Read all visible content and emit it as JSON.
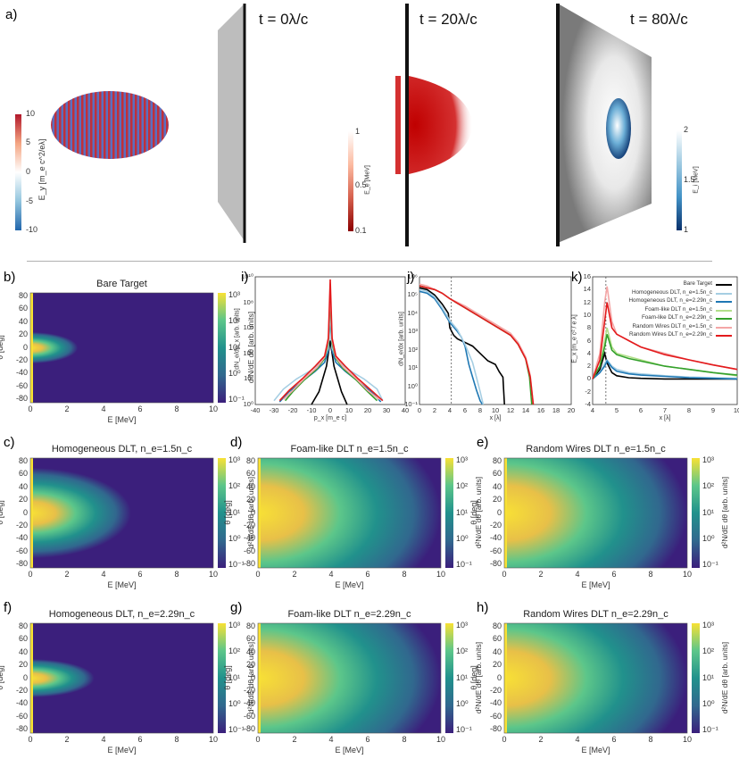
{
  "figure": {
    "panel_letters": {
      "a": "a)",
      "b": "b)",
      "c": "c)",
      "d": "d)",
      "e": "e)",
      "f": "f)",
      "g": "g)",
      "h": "h)",
      "i": "i)",
      "j": "j)",
      "k": "k)"
    }
  },
  "panel_a": {
    "times": [
      "t = 0λ/c",
      "t = 20λ/c",
      "t = 80λ/c"
    ],
    "cb1": {
      "label": "E_y [m_e c^2/eλ]",
      "ticks": [
        "10",
        "5",
        "0",
        "-5",
        "-10"
      ],
      "colors": [
        "#b2182b",
        "#ffffff",
        "#2166ac"
      ]
    },
    "cb2": {
      "label": "E_e [MeV]",
      "ticks": [
        "1",
        "0.5",
        "0.1"
      ],
      "colors": [
        "#ffffff",
        "#d6604d",
        "#8b0000"
      ]
    },
    "cb3": {
      "label": "E_i [MeV]",
      "ticks": [
        "2",
        "1.5",
        "1"
      ],
      "colors": [
        "#ffffff",
        "#6baed6",
        "#08306b"
      ]
    }
  },
  "heatmap_common": {
    "xlabel": "E [MeV]",
    "ylabel": "θ [deg]",
    "cblabel": "d²N/dE dθ [arb. units]",
    "xticks": [
      "0",
      "2",
      "4",
      "6",
      "8",
      "10"
    ],
    "yticks": [
      "80",
      "60",
      "40",
      "20",
      "0",
      "-20",
      "-40",
      "-60",
      "-80"
    ],
    "cbticks": [
      "10³",
      "10²",
      "10¹",
      "10⁰",
      "10⁻¹"
    ]
  },
  "chart_data": [
    {
      "type": "heatmap",
      "panel": "b",
      "title": "Bare Target",
      "xlim": [
        0,
        10
      ],
      "ylim": [
        -90,
        90
      ],
      "colorscale": "log",
      "clim": [
        0.1,
        1000
      ],
      "extent_mev": 2.6,
      "spread": 0.55
    },
    {
      "type": "heatmap",
      "panel": "c",
      "title": "Homogeneous DLT, n_e=1.5n_c",
      "xlim": [
        0,
        10
      ],
      "ylim": [
        -90,
        90
      ],
      "colorscale": "log",
      "clim": [
        0.1,
        1000
      ],
      "extent_mev": 5.5,
      "spread": 0.75
    },
    {
      "type": "heatmap",
      "panel": "d",
      "title": "Foam-like DLT n_e=1.5n_c",
      "xlim": [
        0,
        10
      ],
      "ylim": [
        -90,
        90
      ],
      "colorscale": "log",
      "clim": [
        0.1,
        1000
      ],
      "extent_mev": 10,
      "spread": 1.0
    },
    {
      "type": "heatmap",
      "panel": "e",
      "title": "Random Wires DLT n_e=1.5n_c",
      "xlim": [
        0,
        10
      ],
      "ylim": [
        -90,
        90
      ],
      "colorscale": "log",
      "clim": [
        0.1,
        1000
      ],
      "extent_mev": 10,
      "spread": 1.0
    },
    {
      "type": "heatmap",
      "panel": "f",
      "title": "Homogeneous DLT, n_e=2.29n_c",
      "xlim": [
        0,
        10
      ],
      "ylim": [
        -90,
        90
      ],
      "colorscale": "log",
      "clim": [
        0.1,
        1000
      ],
      "extent_mev": 3.5,
      "spread": 0.5
    },
    {
      "type": "heatmap",
      "panel": "g",
      "title": "Foam-like DLT n_e=2.29n_c",
      "xlim": [
        0,
        10
      ],
      "ylim": [
        -90,
        90
      ],
      "colorscale": "log",
      "clim": [
        0.1,
        1000
      ],
      "extent_mev": 10,
      "spread": 1.0
    },
    {
      "type": "heatmap",
      "panel": "h",
      "title": "Random Wires DLT n_e=2.29n_c",
      "xlim": [
        0,
        10
      ],
      "ylim": [
        -90,
        90
      ],
      "colorscale": "log",
      "clim": [
        0.1,
        1000
      ],
      "extent_mev": 10,
      "spread": 1.0
    },
    {
      "type": "line",
      "panel": "i",
      "xlabel": "p_x [m_e c]",
      "ylabel": "dN_e/dp_x [arb. units]",
      "xlim": [
        -40,
        40
      ],
      "ylim_log10": [
        0,
        10
      ],
      "xticks": [
        "-40",
        "-30",
        "-20",
        "-10",
        "0",
        "10",
        "20",
        "30",
        "40"
      ],
      "yticks": [
        "10¹⁰",
        "10⁸",
        "10⁶",
        "10⁴",
        "10²",
        "10⁰"
      ],
      "series": [
        {
          "color": "#000000",
          "x": [
            -10,
            -6,
            -4,
            -2,
            -1,
            0,
            1,
            2,
            4,
            6,
            9
          ],
          "y": [
            0,
            1,
            2,
            3,
            4,
            5,
            4,
            3,
            2,
            1,
            0
          ]
        },
        {
          "color": "#1f78b4",
          "x": [
            -27,
            -22,
            -15,
            -8,
            -3,
            -1,
            0,
            1,
            3,
            8,
            15,
            22,
            27
          ],
          "y": [
            0.2,
            1,
            1.8,
            2.6,
            3.3,
            4.2,
            7,
            4.2,
            3.3,
            2.6,
            1.8,
            1,
            0.2
          ]
        },
        {
          "color": "#a6cee3",
          "x": [
            -30,
            -25,
            -18,
            -10,
            -4,
            -1,
            0,
            1,
            4,
            10,
            18,
            25,
            28
          ],
          "y": [
            0.3,
            1.2,
            2,
            2.7,
            3.4,
            4.4,
            7.5,
            4.4,
            3.4,
            2.7,
            2,
            1.2,
            0.3
          ]
        },
        {
          "color": "#33a02c",
          "x": [
            -24,
            -20,
            -14,
            -7,
            -3,
            -1,
            0,
            1,
            3,
            7,
            14,
            20,
            25
          ],
          "y": [
            0.3,
            1,
            1.9,
            2.8,
            3.6,
            4.8,
            8.5,
            4.8,
            3.6,
            2.8,
            1.9,
            1,
            0.3
          ]
        },
        {
          "color": "#f4a6a6",
          "x": [
            -25,
            -20,
            -14,
            -7,
            -3,
            -1,
            0,
            1,
            3,
            7,
            14,
            20,
            26
          ],
          "y": [
            0.4,
            1.1,
            2,
            2.9,
            3.7,
            5,
            9,
            5,
            3.7,
            2.9,
            2,
            1.1,
            0.4
          ]
        },
        {
          "color": "#e31a1c",
          "x": [
            -27,
            -22,
            -15,
            -8,
            -3,
            -1,
            0,
            1,
            3,
            8,
            15,
            22,
            28
          ],
          "y": [
            0.3,
            1.1,
            2,
            3,
            3.8,
            5.2,
            9.8,
            5.2,
            3.8,
            3,
            2,
            1.1,
            0.3
          ]
        }
      ]
    },
    {
      "type": "line",
      "panel": "j",
      "xlabel": "x [λ]",
      "ylabel": "dN_e/dx [arb. units]",
      "xlim": [
        0,
        20
      ],
      "ylim_log10": [
        -1,
        6
      ],
      "xticks": [
        "0",
        "2",
        "4",
        "6",
        "8",
        "10",
        "12",
        "14",
        "16",
        "18",
        "20"
      ],
      "yticks": [
        "10⁶",
        "10⁵",
        "10⁴",
        "10³",
        "10²",
        "10¹",
        "10⁰",
        "10⁻¹"
      ],
      "vline": 4.2,
      "series": [
        {
          "color": "#000000",
          "x": [
            0,
            1,
            2,
            3,
            3.8,
            4,
            4.5,
            5,
            6,
            7,
            8,
            8.5,
            9,
            10,
            10.5,
            11,
            11.2
          ],
          "y": [
            5.4,
            5.3,
            5,
            4.5,
            4,
            3.2,
            2.8,
            2.6,
            2.4,
            2.2,
            1.8,
            1.6,
            1.4,
            1.2,
            0.8,
            0.5,
            -1
          ]
        },
        {
          "color": "#1f78b4",
          "x": [
            0,
            1,
            2,
            3,
            4,
            5,
            5.5,
            6,
            6.5,
            7,
            7.5,
            8,
            8.3
          ],
          "y": [
            5.2,
            5.1,
            4.8,
            4.2,
            3.5,
            3.0,
            2.7,
            2.2,
            1.2,
            0.5,
            -0.2,
            -0.8,
            -1
          ]
        },
        {
          "color": "#a6cee3",
          "x": [
            0,
            1,
            2,
            3,
            4,
            5,
            6,
            7,
            7.5,
            8,
            8.4
          ],
          "y": [
            5.3,
            5.2,
            4.9,
            4.3,
            3.6,
            3.1,
            2.3,
            1.3,
            0.5,
            -0.3,
            -1
          ]
        },
        {
          "color": "#33a02c",
          "x": [
            0,
            1,
            2,
            3,
            4,
            6,
            8,
            10,
            12,
            13,
            14,
            14.5,
            14.8
          ],
          "y": [
            5.5,
            5.4,
            5.3,
            5.1,
            4.8,
            4.3,
            3.8,
            3.3,
            2.8,
            2.3,
            1.5,
            0.5,
            -1
          ]
        },
        {
          "color": "#f4a6a6",
          "x": [
            0,
            1,
            2,
            3,
            4,
            6,
            8,
            10,
            12,
            13,
            14,
            14.6,
            15
          ],
          "y": [
            5.6,
            5.5,
            5.3,
            5.1,
            4.8,
            4.4,
            3.9,
            3.4,
            2.9,
            2.4,
            1.6,
            0.6,
            -1
          ]
        },
        {
          "color": "#e31a1c",
          "x": [
            0,
            1,
            2,
            3,
            4,
            6,
            8,
            10,
            12,
            13,
            14,
            14.6,
            15
          ],
          "y": [
            5.5,
            5.4,
            5.3,
            5.1,
            4.8,
            4.3,
            3.8,
            3.3,
            2.8,
            2.3,
            1.5,
            0.5,
            -1
          ]
        }
      ]
    },
    {
      "type": "line",
      "panel": "k",
      "xlabel": "x [λ]",
      "ylabel": "E_x [m_e c² / e λ]",
      "xlim": [
        4,
        10
      ],
      "ylim": [
        -4,
        16
      ],
      "xticks": [
        "4",
        "5",
        "6",
        "7",
        "8",
        "9",
        "10"
      ],
      "yticks": [
        "16",
        "14",
        "12",
        "10",
        "8",
        "6",
        "4",
        "2",
        "0",
        "-2",
        "-4"
      ],
      "vline": 4.55,
      "legend": {
        "position": "top-right",
        "entries": [
          {
            "label": "Bare Target",
            "color": "#000000"
          },
          {
            "label": "Homogeneous DLT, n_e=1.5n_c",
            "color": "#a6cee3"
          },
          {
            "label": "Homogeneous DLT, n_e=2.29n_c",
            "color": "#1f78b4"
          },
          {
            "label": "Foam-like DLT n_e=1.5n_c",
            "color": "#b2df8a"
          },
          {
            "label": "Foam-like DLT n_e=2.29n_c",
            "color": "#33a02c"
          },
          {
            "label": "Random Wires DLT n_e=1.5n_c",
            "color": "#f4a6a6"
          },
          {
            "label": "Random Wires DLT n_e=2.29n_c",
            "color": "#e31a1c"
          }
        ]
      },
      "series": [
        {
          "color": "#000000",
          "x": [
            4,
            4.3,
            4.5,
            4.6,
            4.8,
            5,
            5.5,
            6,
            7,
            8,
            9,
            10
          ],
          "y": [
            0,
            1.5,
            4,
            2.5,
            1,
            0.5,
            0.2,
            0.1,
            0,
            0,
            0,
            0
          ]
        },
        {
          "color": "#a6cee3",
          "x": [
            4,
            4.3,
            4.5,
            4.6,
            4.8,
            5,
            5.5,
            6,
            7,
            8,
            9,
            10
          ],
          "y": [
            0,
            1,
            2.5,
            3,
            2,
            1.5,
            1,
            0.8,
            0.5,
            0.3,
            0.2,
            0.1
          ]
        },
        {
          "color": "#1f78b4",
          "x": [
            4,
            4.3,
            4.5,
            4.6,
            4.8,
            5,
            5.5,
            6,
            7,
            8,
            9,
            10
          ],
          "y": [
            0,
            1,
            2,
            2.8,
            1.8,
            1.2,
            0.8,
            0.6,
            0.4,
            0.2,
            0.1,
            0
          ]
        },
        {
          "color": "#b2df8a",
          "x": [
            4,
            4.3,
            4.5,
            4.6,
            4.8,
            5,
            5.5,
            6,
            7,
            8,
            9,
            10
          ],
          "y": [
            0,
            2,
            6,
            8,
            5,
            4,
            3.5,
            3,
            2,
            1.5,
            1,
            0.5
          ]
        },
        {
          "color": "#33a02c",
          "x": [
            4,
            4.3,
            4.5,
            4.6,
            4.8,
            5,
            5.5,
            6,
            7,
            8,
            9,
            10
          ],
          "y": [
            0,
            2,
            5,
            7,
            4.5,
            3.8,
            3.2,
            2.8,
            2,
            1.5,
            1,
            0.6
          ]
        },
        {
          "color": "#f4a6a6",
          "x": [
            4,
            4.3,
            4.5,
            4.6,
            4.8,
            5,
            5.5,
            6,
            7,
            8,
            9,
            10
          ],
          "y": [
            0,
            4,
            12,
            14.5,
            9,
            7,
            6,
            5,
            4,
            3,
            2.2,
            1.5
          ]
        },
        {
          "color": "#e31a1c",
          "x": [
            4,
            4.3,
            4.5,
            4.6,
            4.8,
            5,
            5.5,
            6,
            7,
            8,
            9,
            10
          ],
          "y": [
            0,
            3,
            9,
            12,
            8,
            7,
            6,
            5,
            3.8,
            3,
            2.2,
            1.5
          ]
        }
      ]
    }
  ]
}
